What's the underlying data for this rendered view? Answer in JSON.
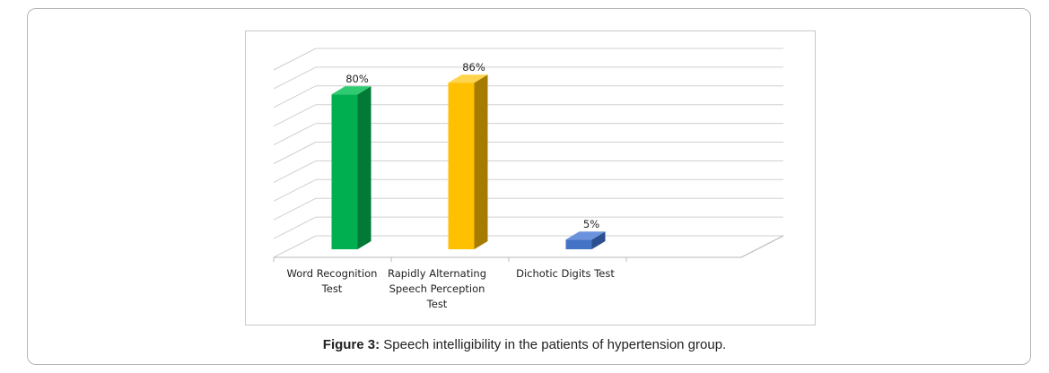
{
  "figure": {
    "caption_label": "Figure 3:",
    "caption_text": " Speech intelligibility in the patients of hypertension group."
  },
  "chart_data": {
    "type": "bar",
    "title": "",
    "xlabel": "",
    "ylabel": "",
    "ylim": [
      0,
      100
    ],
    "grid": true,
    "categories": [
      "Word Recognition Test",
      "Rapidly Alternating Speech Perception Test",
      "Dichotic Digits Test"
    ],
    "category_label_lines": [
      [
        "Word Recognition",
        "Test"
      ],
      [
        "Rapidly Alternating",
        "Speech Perception",
        "Test"
      ],
      [
        "Dichotic Digits Test"
      ]
    ],
    "values": [
      80,
      86,
      5
    ],
    "data_labels": [
      "80%",
      "86%",
      "5%"
    ],
    "colors": [
      {
        "front": "#00b050",
        "side": "#007a36",
        "top": "#2ecb70"
      },
      {
        "front": "#ffc000",
        "side": "#a67c00",
        "top": "#ffd44d"
      },
      {
        "front": "#4472c4",
        "side": "#2c4f8f",
        "top": "#6b93dd"
      }
    ]
  }
}
